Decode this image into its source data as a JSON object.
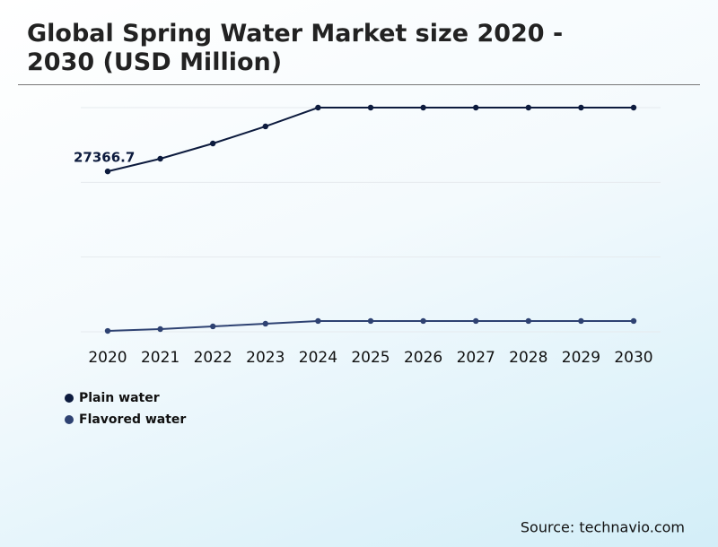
{
  "chart_data": {
    "type": "line",
    "title": "Global Spring Water Market size 2020 - 2030 (USD Million)",
    "source": "Source: technavio.com",
    "categories": [
      "2020",
      "2021",
      "2022",
      "2023",
      "2024",
      "2025",
      "2026",
      "2027",
      "2028",
      "2029",
      "2030"
    ],
    "series": [
      {
        "name": "Plain water",
        "color": "#0d1b3e",
        "values": [
          27366.7,
          29530,
          32130,
          35040,
          38250,
          38250,
          38250,
          38250,
          38250,
          38250,
          38250
        ]
      },
      {
        "name": "Flavored water",
        "color": "#2e4272",
        "values": [
          150,
          460,
          920,
          1380,
          1840,
          1840,
          1840,
          1840,
          1840,
          1840,
          1840
        ]
      }
    ],
    "ylim": [
      0,
      38250
    ],
    "yticks": [
      0,
      12750,
      25500,
      38250
    ],
    "grid": true
  }
}
